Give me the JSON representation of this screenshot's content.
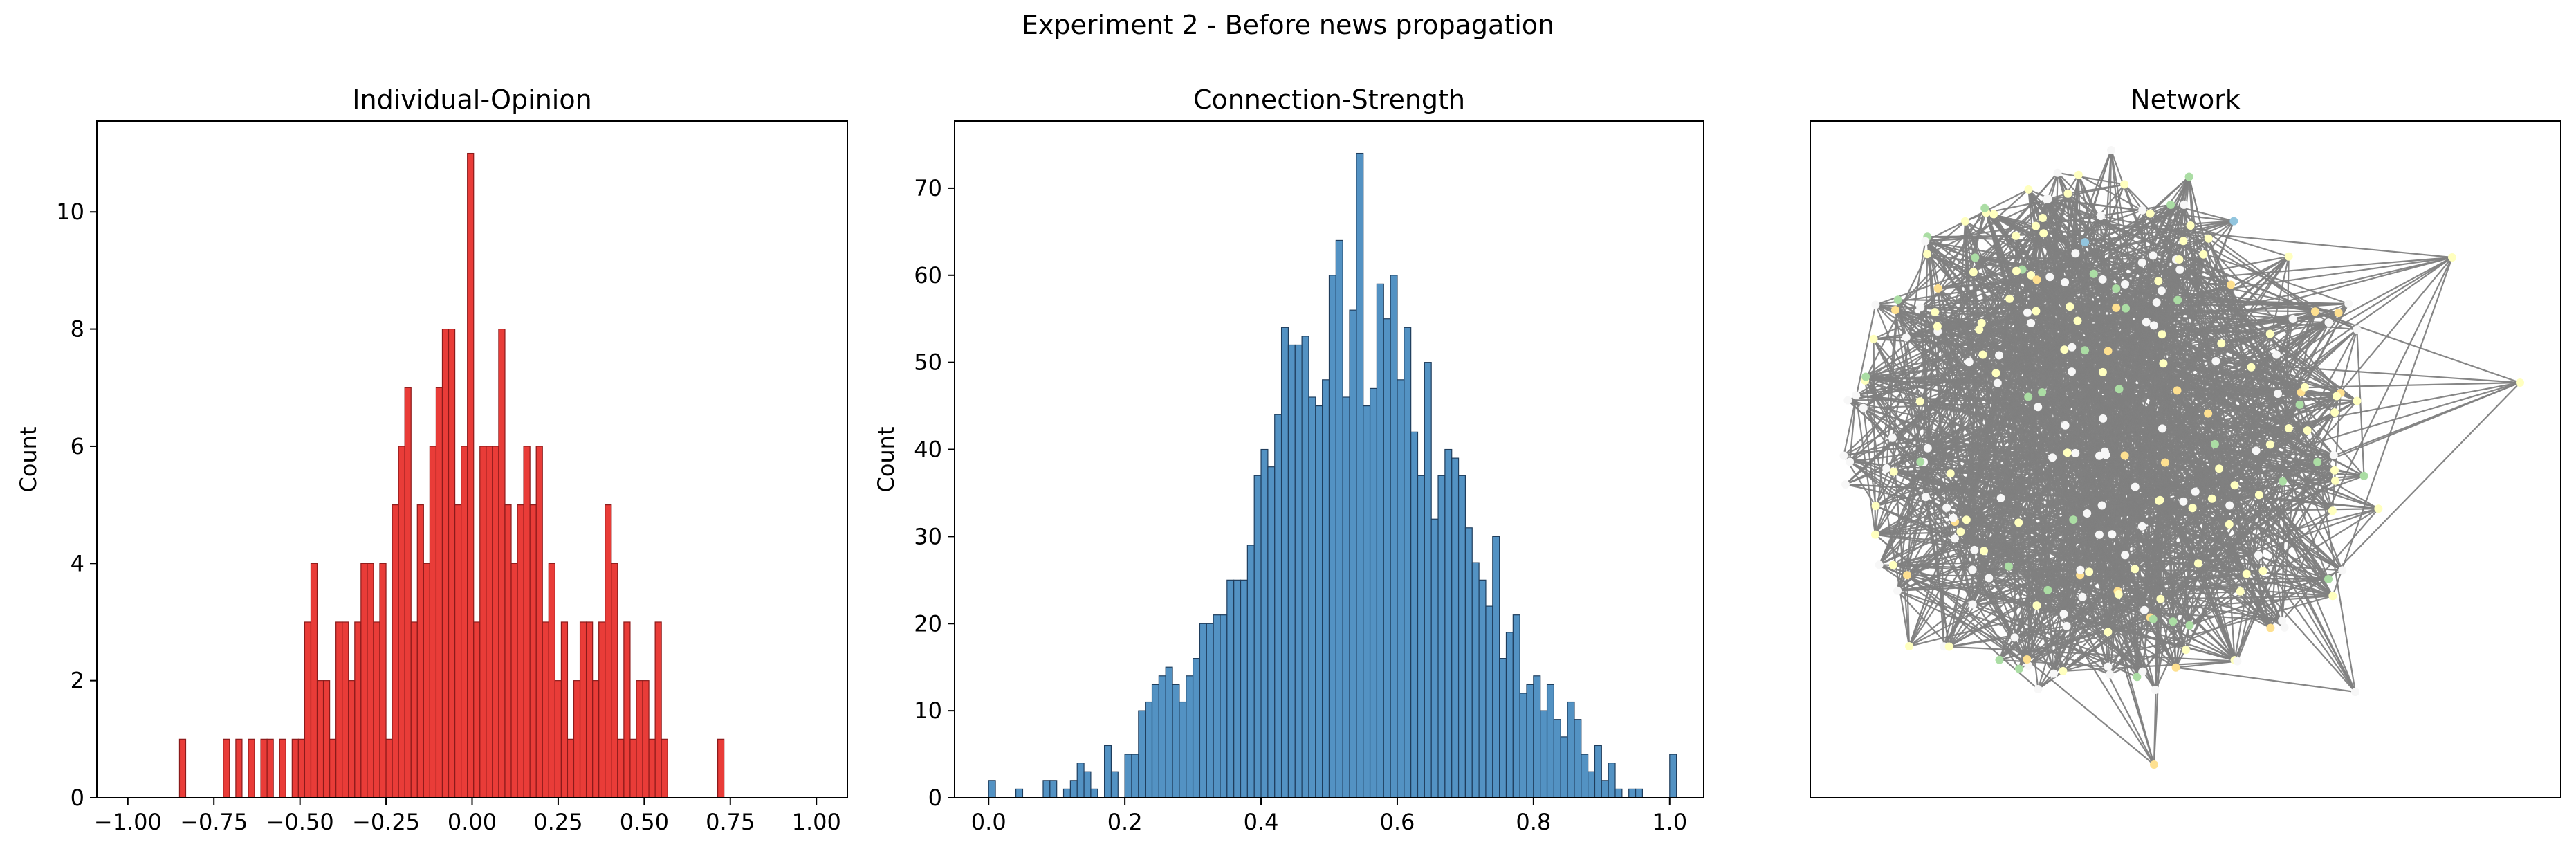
{
  "figure": {
    "suptitle": "Experiment 2 - Before news propagation"
  },
  "colors": {
    "opinion_bar": "#e8312d",
    "opinion_edge": "#8b1a1a",
    "strength_bar": "#4a8cc0",
    "strength_edge": "#1f3d5c",
    "edge": "#808080"
  },
  "chart_data": [
    {
      "type": "bar",
      "title": "Individual-Opinion",
      "xlabel": "",
      "ylabel": "Count",
      "xlim": [
        -1.09,
        1.09
      ],
      "ylim": [
        0,
        11.55
      ],
      "xticks": [
        -1.0,
        -0.75,
        -0.5,
        -0.25,
        0.0,
        0.25,
        0.5,
        0.75,
        1.0
      ],
      "xtick_labels": [
        "−1.00",
        "−0.75",
        "−0.50",
        "−0.25",
        "0.00",
        "0.25",
        "0.50",
        "0.75",
        "1.00"
      ],
      "yticks": [
        0,
        2,
        4,
        6,
        8,
        10
      ],
      "bin_start": -0.85,
      "bin_width": 0.01818,
      "values": [
        1,
        0,
        0,
        0,
        0,
        0,
        0,
        1,
        0,
        1,
        0,
        1,
        0,
        1,
        1,
        0,
        1,
        0,
        1,
        1,
        3,
        4,
        2,
        2,
        1,
        3,
        3,
        2,
        3,
        4,
        4,
        3,
        4,
        1,
        5,
        6,
        7,
        3,
        5,
        4,
        6,
        7,
        8,
        8,
        5,
        6,
        11,
        3,
        6,
        6,
        6,
        8,
        5,
        4,
        5,
        6,
        5,
        6,
        3,
        4,
        2,
        3,
        1,
        2,
        3,
        3,
        2,
        3,
        5,
        4,
        1,
        3,
        1,
        2,
        2,
        1,
        3,
        1,
        0,
        0,
        0,
        0,
        0,
        0,
        0,
        0,
        1
      ],
      "grid": false,
      "legend": "none"
    },
    {
      "type": "bar",
      "title": "Connection-Strength",
      "xlabel": "",
      "ylabel": "Count",
      "xlim": [
        -0.05,
        1.05
      ],
      "ylim": [
        0,
        77.7
      ],
      "xticks": [
        0.0,
        0.2,
        0.4,
        0.6,
        0.8,
        1.0
      ],
      "xtick_labels": [
        "0.0",
        "0.2",
        "0.4",
        "0.6",
        "0.8",
        "1.0"
      ],
      "yticks": [
        0,
        10,
        20,
        30,
        40,
        50,
        60,
        70
      ],
      "bin_start": 0.0,
      "bin_width": 0.01,
      "values": [
        2,
        0,
        0,
        0,
        1,
        0,
        0,
        0,
        2,
        2,
        0,
        1,
        2,
        4,
        3,
        1,
        0,
        6,
        3,
        0,
        5,
        5,
        10,
        11,
        13,
        14,
        15,
        13,
        11,
        14,
        16,
        20,
        20,
        21,
        21,
        25,
        25,
        25,
        29,
        37,
        40,
        38,
        44,
        54,
        52,
        52,
        53,
        46,
        45,
        48,
        60,
        64,
        46,
        56,
        74,
        45,
        47,
        59,
        55,
        60,
        48,
        54,
        42,
        37,
        50,
        32,
        37,
        40,
        39,
        37,
        31,
        27,
        25,
        22,
        30,
        16,
        19,
        21,
        12,
        13,
        14,
        10,
        13,
        9,
        7,
        11,
        9,
        5,
        3,
        6,
        2,
        4,
        1,
        0,
        1,
        1,
        0,
        0,
        0,
        0,
        5
      ],
      "grid": false,
      "legend": "none"
    },
    {
      "type": "network",
      "title": "Network",
      "xlabel": "",
      "ylabel": "",
      "node_count": 240,
      "node_colormap": [
        "#b2182b",
        "#ef8a62",
        "#fdae61",
        "#fee090",
        "#ffffbf",
        "#f7f7f7",
        "#abdda4",
        "#92c5de",
        "#4393c3",
        "#2166ac"
      ],
      "grid": false,
      "legend": "none"
    }
  ]
}
